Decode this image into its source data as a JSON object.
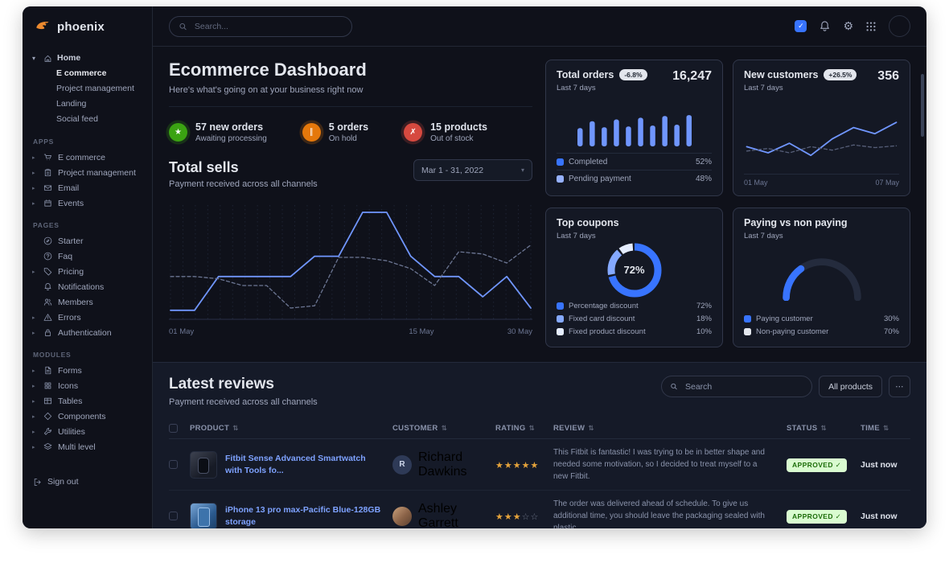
{
  "theme": {
    "primary": "#3874ff",
    "primary_light": "#85a9ff",
    "card_bg": "#141824",
    "body_bg": "#0f111a",
    "border": "#31374a",
    "success": "#3ba312",
    "warning": "#e5780b",
    "danger": "#d6493f",
    "link": "#7ea2ff",
    "star": "#e5a33b"
  },
  "glyphs": {
    "caret_down": "▾",
    "caret_right": "▸",
    "check": "✓",
    "ellipsis": "⋯",
    "gear": "⚙",
    "sort": "⇅",
    "star": "★",
    "star_empty": "☆"
  },
  "sidebar": {
    "logo_text": "phoenix",
    "home": {
      "label": "Home",
      "icon": "home",
      "children": [
        {
          "label": "E commerce",
          "active": true
        },
        {
          "label": "Project management",
          "active": false
        },
        {
          "label": "Landing",
          "active": false
        },
        {
          "label": "Social feed",
          "active": false
        }
      ]
    },
    "sections": [
      {
        "title": "APPS",
        "items": [
          {
            "label": "E commerce",
            "icon": "cart",
            "chevron": true
          },
          {
            "label": "Project management",
            "icon": "clipboard",
            "chevron": true
          },
          {
            "label": "Email",
            "icon": "mail",
            "chevron": true
          },
          {
            "label": "Events",
            "icon": "calendar",
            "chevron": true
          }
        ]
      },
      {
        "title": "PAGES",
        "items": [
          {
            "label": "Starter",
            "icon": "compass",
            "chevron": false
          },
          {
            "label": "Faq",
            "icon": "question",
            "chevron": false
          },
          {
            "label": "Pricing",
            "icon": "tag",
            "chevron": true
          },
          {
            "label": "Notifications",
            "icon": "bell",
            "chevron": false
          },
          {
            "label": "Members",
            "icon": "users",
            "chevron": false
          },
          {
            "label": "Errors",
            "icon": "warning",
            "chevron": true
          },
          {
            "label": "Authentication",
            "icon": "lock",
            "chevron": true
          }
        ]
      },
      {
        "title": "MODULES",
        "items": [
          {
            "label": "Forms",
            "icon": "form",
            "chevron": true
          },
          {
            "label": "Icons",
            "icon": "icons",
            "chevron": true
          },
          {
            "label": "Tables",
            "icon": "table",
            "chevron": true
          },
          {
            "label": "Components",
            "icon": "components",
            "chevron": true
          },
          {
            "label": "Utilities",
            "icon": "utilities",
            "chevron": true
          },
          {
            "label": "Multi level",
            "icon": "layers",
            "chevron": true
          }
        ]
      }
    ],
    "signout": {
      "label": "Sign out",
      "icon": "signout"
    }
  },
  "navbar": {
    "search_placeholder": "Search...",
    "icons": [
      "checked-checkbox",
      "bell",
      "gear",
      "grid",
      "avatar"
    ]
  },
  "header": {
    "title": "Ecommerce Dashboard",
    "subtitle": "Here's what's going on at your business right now"
  },
  "stats": [
    {
      "title": "57 new orders",
      "desc": "Awaiting processing",
      "icon": "star",
      "glyph": "★",
      "color": "#3ba312"
    },
    {
      "title": "5 orders",
      "desc": "On hold",
      "icon": "pause",
      "glyph": "∥",
      "color": "#e5780b"
    },
    {
      "title": "15 products",
      "desc": "Out of stock",
      "icon": "cross",
      "glyph": "✗",
      "color": "#d6493f"
    }
  ],
  "chart_data": [
    {
      "id": "total-sells",
      "type": "line",
      "title": "Total sells",
      "subtitle": "Payment received across all channels",
      "date_range": "Mar 1 - 31, 2022",
      "x_ticks": [
        "01 May",
        "15 May",
        "30 May"
      ],
      "ylim": [
        0,
        100
      ],
      "grid": "vertical-dotted",
      "legend_position": "none",
      "series": [
        {
          "name": "current",
          "style": "solid",
          "color": "#7096ff",
          "values": [
            8,
            8,
            38,
            38,
            38,
            38,
            56,
            56,
            95,
            95,
            56,
            38,
            38,
            20,
            38,
            10
          ]
        },
        {
          "name": "previous",
          "style": "dashed",
          "color": "#6c7693",
          "values": [
            38,
            38,
            36,
            30,
            30,
            10,
            12,
            55,
            55,
            52,
            45,
            30,
            60,
            58,
            50,
            66
          ]
        }
      ]
    },
    {
      "id": "total-orders",
      "type": "bar",
      "title": "Total orders",
      "change": "-6.8%",
      "period": "Last 7 days",
      "value": "16,247",
      "values": [
        42,
        58,
        44,
        62,
        46,
        66,
        48,
        70,
        50,
        72
      ],
      "bar_color": "#7096ff",
      "ylim": [
        0,
        100
      ],
      "legend": [
        {
          "label": "Completed",
          "value": "52%",
          "color": "#3874ff"
        },
        {
          "label": "Pending payment",
          "value": "48%",
          "color": "#96b1ff"
        }
      ]
    },
    {
      "id": "new-customers",
      "type": "line",
      "title": "New customers",
      "change": "+26.5%",
      "period": "Last 7 days",
      "value": "356",
      "x_ticks": [
        "01 May",
        "07 May"
      ],
      "ylim": [
        0,
        100
      ],
      "series": [
        {
          "name": "current",
          "style": "solid",
          "color": "#7096ff",
          "values": [
            40,
            26,
            48,
            20,
            58,
            84,
            70,
            96
          ]
        },
        {
          "name": "previous",
          "style": "dashed",
          "color": "#565e78",
          "values": [
            30,
            36,
            26,
            40,
            32,
            44,
            38,
            42
          ]
        }
      ]
    },
    {
      "id": "top-coupons",
      "type": "pie",
      "variant": "donut",
      "title": "Top coupons",
      "period": "Last 7 days",
      "center_label": "72%",
      "slices": [
        {
          "label": "Percentage discount",
          "value": 72,
          "display": "72%",
          "color": "#3874ff"
        },
        {
          "label": "Fixed card discount",
          "value": 18,
          "display": "18%",
          "color": "#85a9ff"
        },
        {
          "label": "Fixed product discount",
          "value": 10,
          "display": "10%",
          "color": "#e5edff"
        }
      ]
    },
    {
      "id": "paying-gauge",
      "type": "pie",
      "variant": "gauge",
      "title": "Paying vs non paying",
      "period": "Last 7 days",
      "value": 30,
      "arc_color": "#3874ff",
      "track_color": "#242b3d",
      "legend": [
        {
          "label": "Paying customer",
          "value": "30%",
          "color": "#3874ff"
        },
        {
          "label": "Non-paying customer",
          "value": "70%",
          "color": "#e3e6ed"
        }
      ]
    }
  ],
  "reviews": {
    "title": "Latest reviews",
    "subtitle": "Payment received across all channels",
    "search_placeholder": "Search",
    "filter_label": "All products",
    "more_label": "⋯",
    "columns": [
      "PRODUCT",
      "CUSTOMER",
      "RATING",
      "REVIEW",
      "STATUS",
      "TIME"
    ],
    "rows": [
      {
        "product": "Fitbit Sense Advanced Smartwatch with Tools fo...",
        "thumb": "smartwatch",
        "customer": "Richard Dawkins",
        "initial": "R",
        "rating": 5,
        "review": "This Fitbit is fantastic! I was trying to be in better shape and needed some motivation, so I decided to treat myself to a new Fitbit.",
        "status": "APPROVED",
        "time": "Just now"
      },
      {
        "product": "iPhone 13 pro max-Pacific Blue-128GB storage",
        "thumb": "iphone",
        "customer": "Ashley Garrett",
        "initial": "",
        "rating": 3,
        "review": "The order was delivered ahead of schedule. To give us additional time, you should leave the packaging sealed with plastic.",
        "status": "APPROVED",
        "time": "Just now"
      }
    ]
  }
}
